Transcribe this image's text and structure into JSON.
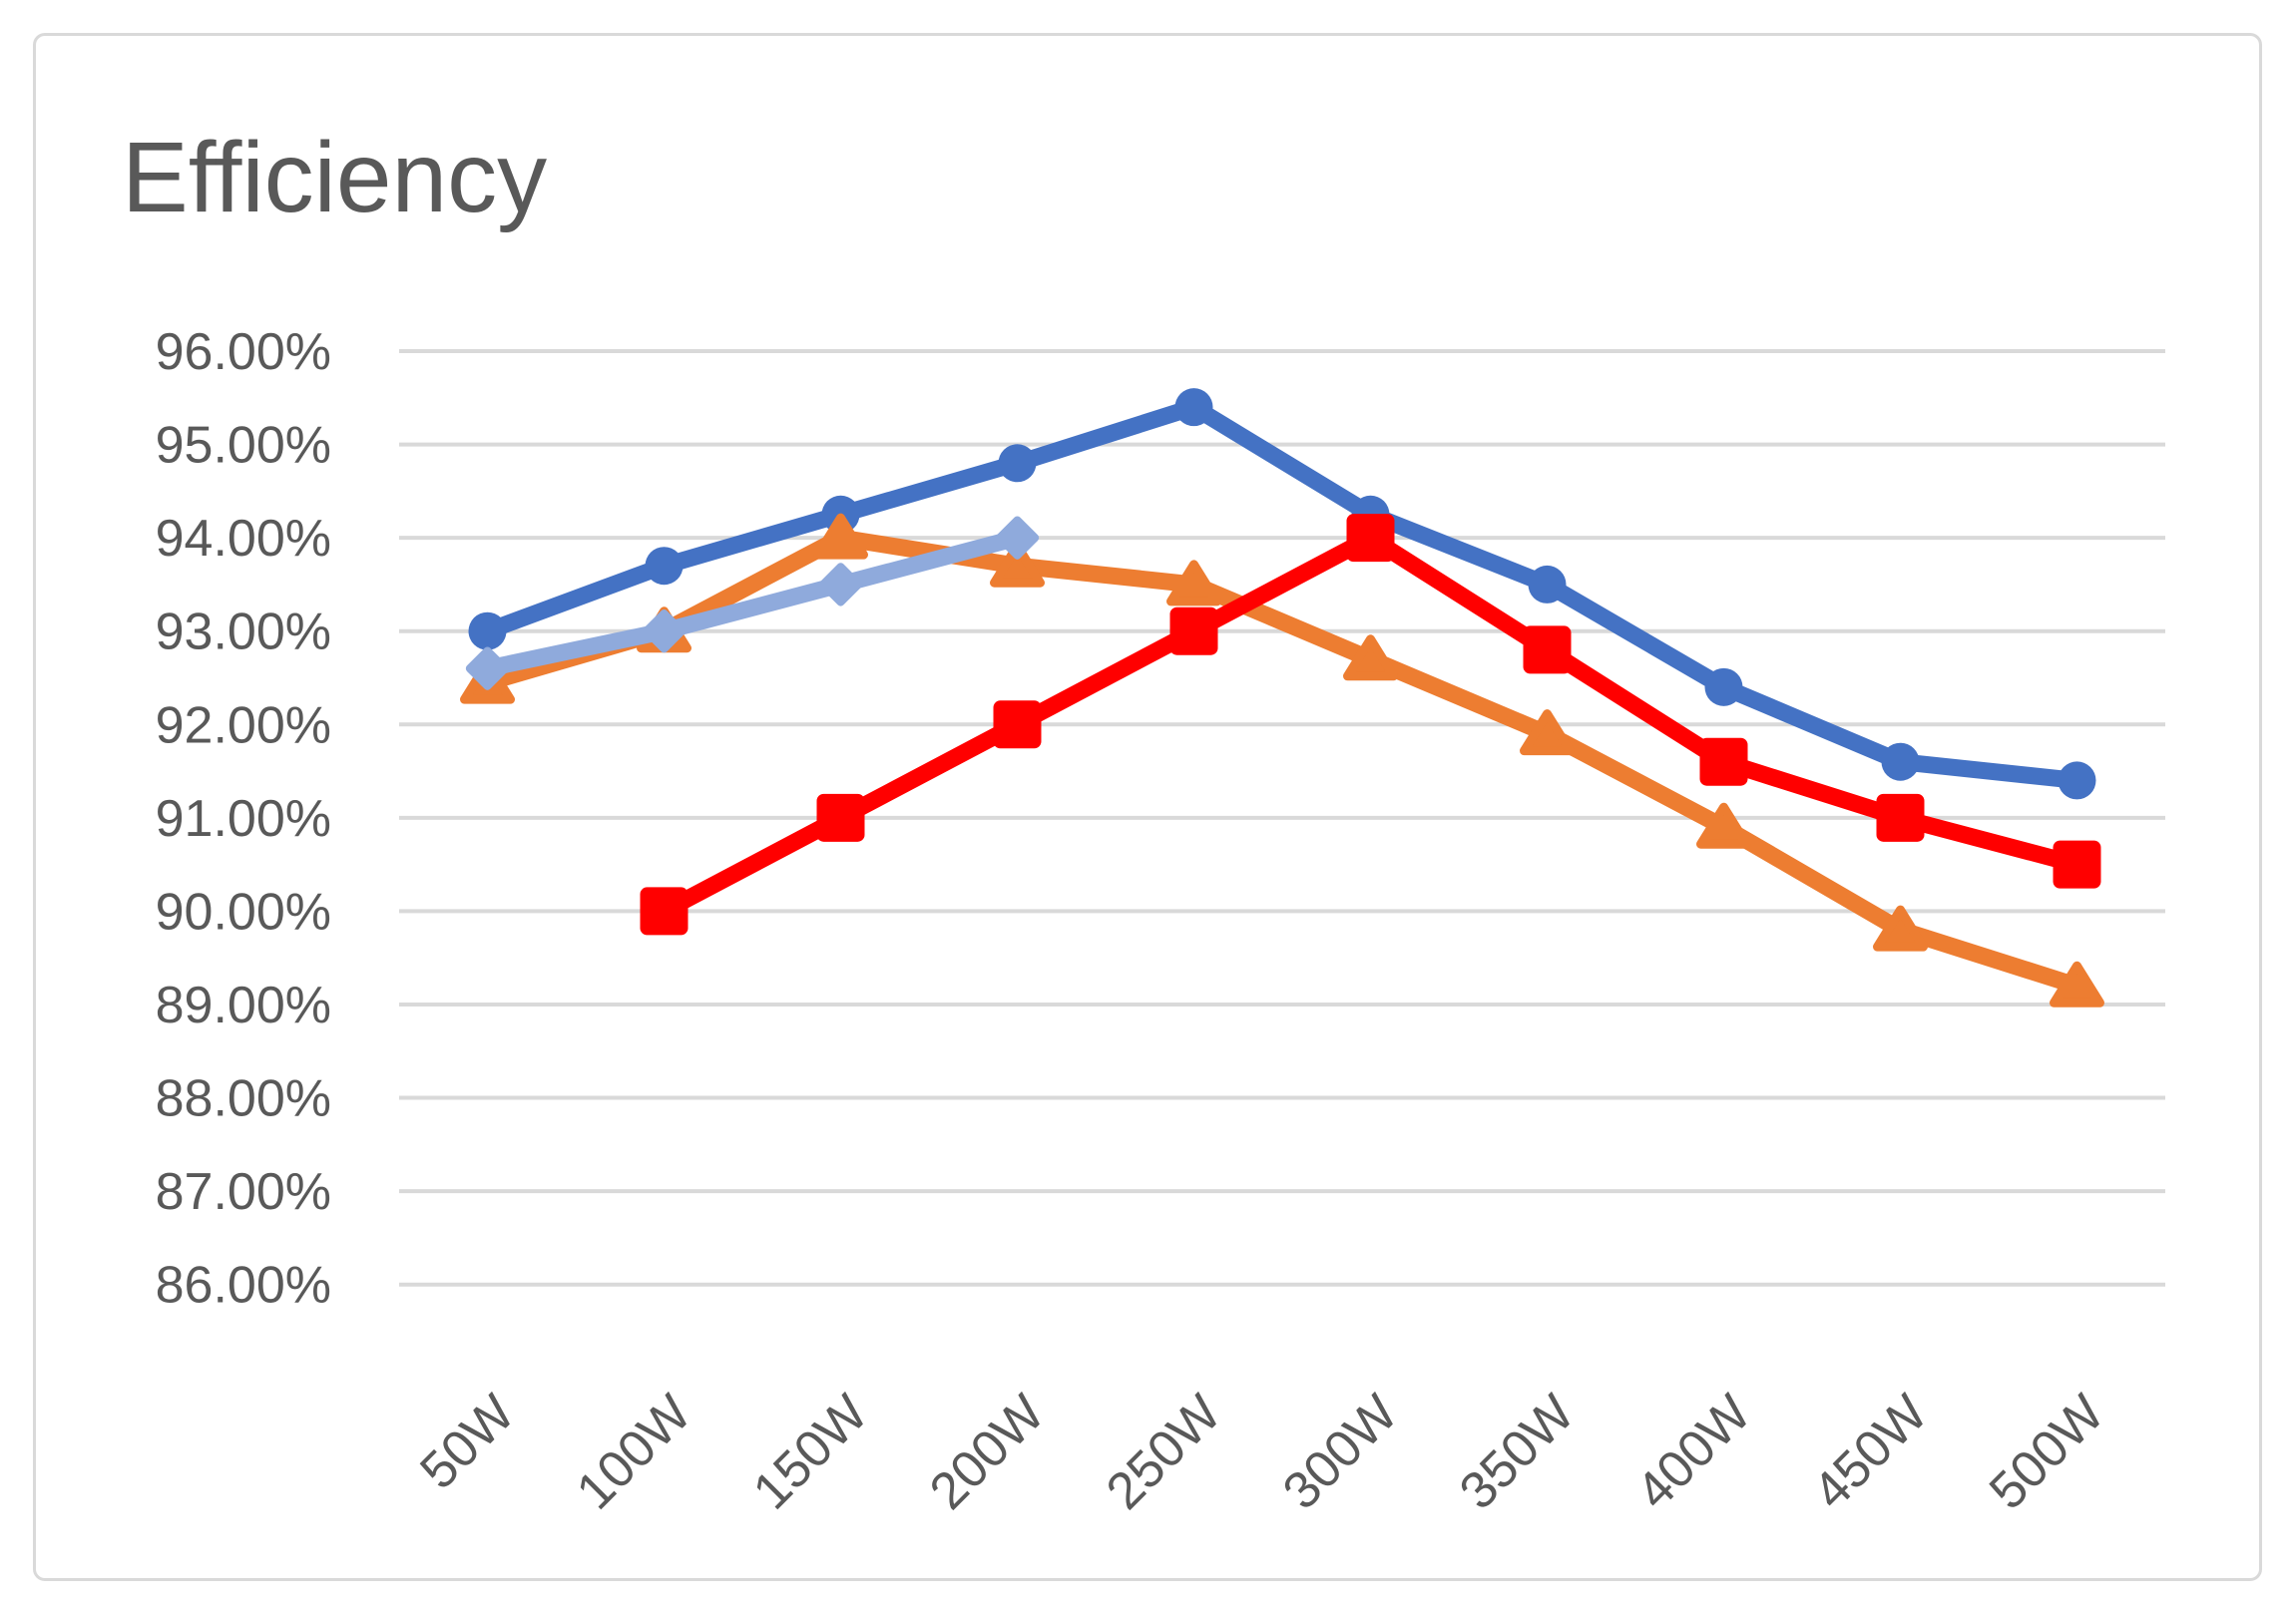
{
  "chart_data": {
    "type": "line",
    "title": "Efficiency",
    "categories": [
      "50W",
      "100W",
      "150W",
      "200W",
      "250W",
      "300W",
      "350W",
      "400W",
      "450W",
      "500W"
    ],
    "y_ticks": [
      "96.00%",
      "95.00%",
      "94.00%",
      "93.00%",
      "92.00%",
      "91.00%",
      "90.00%",
      "89.00%",
      "88.00%",
      "87.00%",
      "86.00%"
    ],
    "y_axis": {
      "min": 86,
      "max": 96,
      "step": 1,
      "unit": "percent"
    },
    "grid": true,
    "legend_position": "none",
    "colors": {
      "grid": "#d9d9d9",
      "text": "#595959",
      "frame_border": "#d9d9d9",
      "background": "#ffffff"
    },
    "series": [
      {
        "name": "blue-circle-series",
        "marker": "circle",
        "color": "#4472C4",
        "values": [
          93.0,
          93.7,
          94.25,
          94.8,
          95.4,
          94.25,
          93.5,
          92.4,
          91.6,
          91.4
        ]
      },
      {
        "name": "orange-triangle-series",
        "marker": "triangle",
        "color": "#ED7D31",
        "values": [
          92.45,
          93.0,
          94.0,
          93.7,
          93.5,
          92.7,
          91.9,
          90.9,
          89.8,
          89.2
        ]
      },
      {
        "name": "lightblue-diamond-series",
        "marker": "diamond",
        "color": "#8FAADC",
        "values": [
          92.6,
          93.0,
          93.5,
          94.0,
          null,
          null,
          null,
          null,
          null,
          null
        ]
      },
      {
        "name": "red-square-series",
        "marker": "square",
        "color": "#FF0000",
        "values": [
          null,
          90.0,
          91.0,
          92.0,
          93.0,
          94.0,
          92.8,
          91.6,
          91.0,
          90.5
        ]
      }
    ]
  }
}
